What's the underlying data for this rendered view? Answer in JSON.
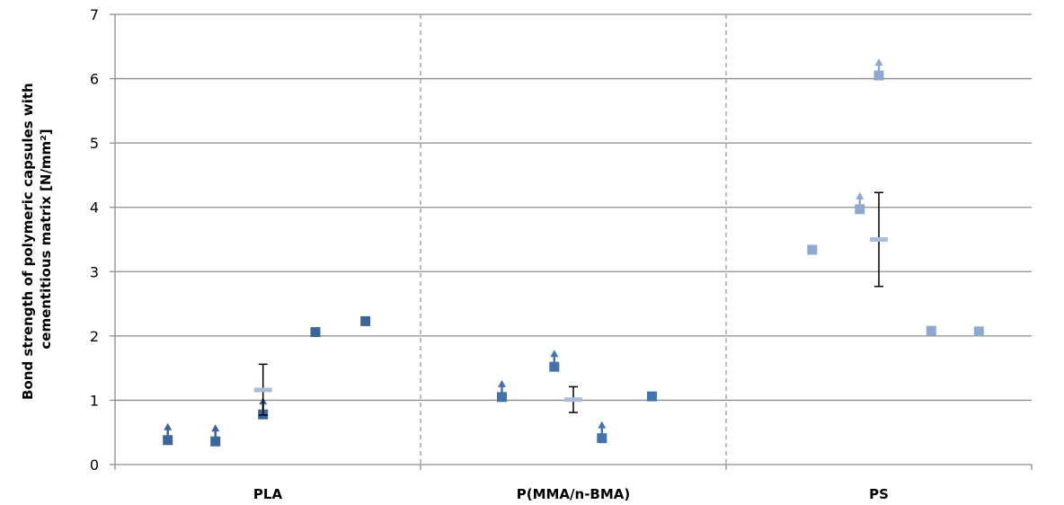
{
  "chart_data": {
    "type": "scatter",
    "ylabel_lines": [
      "Bond strength of polymeric capsules with",
      "cementitious matrix [N/mm²]"
    ],
    "ylim": [
      0,
      7
    ],
    "yticks": [
      0,
      1,
      2,
      3,
      4,
      5,
      6,
      7
    ],
    "grid": true,
    "categories": [
      "PLA",
      "P(MMA/n-BMA)",
      "PS"
    ],
    "groups": [
      {
        "category": "PLA",
        "color": "#3C6699",
        "samples": [
          {
            "value": 0.38,
            "lower_bound": true
          },
          {
            "value": 0.36,
            "lower_bound": true
          },
          {
            "value": 0.78,
            "lower_bound": true
          },
          {
            "value": 2.06,
            "lower_bound": false
          },
          {
            "value": 2.23,
            "lower_bound": false
          }
        ],
        "mean": 1.16,
        "error": [
          0.77,
          1.56
        ]
      },
      {
        "category": "P(MMA/n-BMA)",
        "color": "#4472AE",
        "samples": [
          {
            "value": 1.05,
            "lower_bound": true
          },
          {
            "value": 1.52,
            "lower_bound": true
          },
          {
            "value": 0.41,
            "lower_bound": true
          },
          {
            "value": 1.06,
            "lower_bound": false
          }
        ],
        "mean": 1.01,
        "error": [
          0.81,
          1.21
        ]
      },
      {
        "category": "PS",
        "color": "#8EA9CF",
        "samples": [
          {
            "value": 3.34,
            "lower_bound": false
          },
          {
            "value": 3.97,
            "lower_bound": true
          },
          {
            "value": 6.05,
            "lower_bound": true
          },
          {
            "value": 2.08,
            "lower_bound": false
          },
          {
            "value": 2.07,
            "lower_bound": false
          }
        ],
        "mean": 3.5,
        "error": [
          2.77,
          4.23
        ]
      }
    ]
  }
}
